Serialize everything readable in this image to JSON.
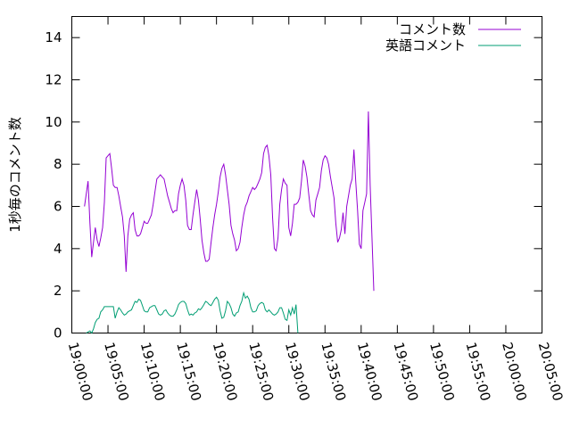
{
  "chart_data": {
    "type": "line",
    "title": "",
    "ylabel": "1秒毎のコメント数",
    "xlabel": "",
    "ylim": [
      0,
      15
    ],
    "yticks": [
      0,
      2,
      4,
      6,
      8,
      10,
      12,
      14
    ],
    "xlim": [
      "19:00:00",
      "20:05:00"
    ],
    "xticks": [
      "19:00:00",
      "19:05:00",
      "19:10:00",
      "19:15:00",
      "19:20:00",
      "19:25:00",
      "19:30:00",
      "19:35:00",
      "19:40:00",
      "19:45:00",
      "19:50:00",
      "19:55:00",
      "20:00:00",
      "20:05:00"
    ],
    "legend_position": "top-right",
    "series": [
      {
        "name": "コメント数",
        "color": "#9400d3",
        "points": [
          [
            "19:01:45",
            6.0
          ],
          [
            "19:02:00",
            6.6
          ],
          [
            "19:02:15",
            7.2
          ],
          [
            "19:02:30",
            5.2
          ],
          [
            "19:02:45",
            3.6
          ],
          [
            "19:03:00",
            4.3
          ],
          [
            "19:03:15",
            5.0
          ],
          [
            "19:03:30",
            4.4
          ],
          [
            "19:03:45",
            4.1
          ],
          [
            "19:04:00",
            4.5
          ],
          [
            "19:04:15",
            5.0
          ],
          [
            "19:04:30",
            6.2
          ],
          [
            "19:04:45",
            8.3
          ],
          [
            "19:05:00",
            8.4
          ],
          [
            "19:05:15",
            8.5
          ],
          [
            "19:05:30",
            7.8
          ],
          [
            "19:05:45",
            7.0
          ],
          [
            "19:06:00",
            6.9
          ],
          [
            "19:06:15",
            6.9
          ],
          [
            "19:06:30",
            6.5
          ],
          [
            "19:06:45",
            6.0
          ],
          [
            "19:07:00",
            5.5
          ],
          [
            "19:07:15",
            4.6
          ],
          [
            "19:07:30",
            2.9
          ],
          [
            "19:07:45",
            4.6
          ],
          [
            "19:08:00",
            5.4
          ],
          [
            "19:08:15",
            5.6
          ],
          [
            "19:08:30",
            5.7
          ],
          [
            "19:08:45",
            4.9
          ],
          [
            "19:09:00",
            4.6
          ],
          [
            "19:09:15",
            4.6
          ],
          [
            "19:09:30",
            4.7
          ],
          [
            "19:09:45",
            5.0
          ],
          [
            "19:10:00",
            5.3
          ],
          [
            "19:10:15",
            5.2
          ],
          [
            "19:10:30",
            5.2
          ],
          [
            "19:10:45",
            5.4
          ],
          [
            "19:11:00",
            5.6
          ],
          [
            "19:11:15",
            6.1
          ],
          [
            "19:11:30",
            6.7
          ],
          [
            "19:11:45",
            7.3
          ],
          [
            "19:12:00",
            7.4
          ],
          [
            "19:12:15",
            7.5
          ],
          [
            "19:12:30",
            7.4
          ],
          [
            "19:12:45",
            7.3
          ],
          [
            "19:13:00",
            6.9
          ],
          [
            "19:13:15",
            6.5
          ],
          [
            "19:13:30",
            6.2
          ],
          [
            "19:13:45",
            5.9
          ],
          [
            "19:14:00",
            5.7
          ],
          [
            "19:14:15",
            5.8
          ],
          [
            "19:14:30",
            5.8
          ],
          [
            "19:14:45",
            6.6
          ],
          [
            "19:15:00",
            7.0
          ],
          [
            "19:15:15",
            7.3
          ],
          [
            "19:15:30",
            7.0
          ],
          [
            "19:15:45",
            6.3
          ],
          [
            "19:16:00",
            5.1
          ],
          [
            "19:16:15",
            4.9
          ],
          [
            "19:16:30",
            4.9
          ],
          [
            "19:16:45",
            5.6
          ],
          [
            "19:17:00",
            6.2
          ],
          [
            "19:17:15",
            6.8
          ],
          [
            "19:17:30",
            6.3
          ],
          [
            "19:17:45",
            5.4
          ],
          [
            "19:18:00",
            4.4
          ],
          [
            "19:18:15",
            3.8
          ],
          [
            "19:18:30",
            3.4
          ],
          [
            "19:18:45",
            3.4
          ],
          [
            "19:19:00",
            3.5
          ],
          [
            "19:19:15",
            4.3
          ],
          [
            "19:19:30",
            5.0
          ],
          [
            "19:19:45",
            5.6
          ],
          [
            "19:20:00",
            6.1
          ],
          [
            "19:20:15",
            6.7
          ],
          [
            "19:20:30",
            7.4
          ],
          [
            "19:20:45",
            7.8
          ],
          [
            "19:21:00",
            8.0
          ],
          [
            "19:21:15",
            7.5
          ],
          [
            "19:21:30",
            6.8
          ],
          [
            "19:21:45",
            6.1
          ],
          [
            "19:22:00",
            5.1
          ],
          [
            "19:22:15",
            4.7
          ],
          [
            "19:22:30",
            4.4
          ],
          [
            "19:22:45",
            3.9
          ],
          [
            "19:23:00",
            4.0
          ],
          [
            "19:23:15",
            4.3
          ],
          [
            "19:23:30",
            5.0
          ],
          [
            "19:23:45",
            5.6
          ],
          [
            "19:24:00",
            6.0
          ],
          [
            "19:24:15",
            6.2
          ],
          [
            "19:24:30",
            6.5
          ],
          [
            "19:24:45",
            6.7
          ],
          [
            "19:25:00",
            6.9
          ],
          [
            "19:25:15",
            6.8
          ],
          [
            "19:25:30",
            6.9
          ],
          [
            "19:25:45",
            7.1
          ],
          [
            "19:26:00",
            7.3
          ],
          [
            "19:26:15",
            7.6
          ],
          [
            "19:26:30",
            8.5
          ],
          [
            "19:26:45",
            8.8
          ],
          [
            "19:27:00",
            8.9
          ],
          [
            "19:27:15",
            8.4
          ],
          [
            "19:27:30",
            7.5
          ],
          [
            "19:27:45",
            5.5
          ],
          [
            "19:28:00",
            4.0
          ],
          [
            "19:28:15",
            3.9
          ],
          [
            "19:28:30",
            4.5
          ],
          [
            "19:28:45",
            6.1
          ],
          [
            "19:29:00",
            6.8
          ],
          [
            "19:29:15",
            7.3
          ],
          [
            "19:29:30",
            7.1
          ],
          [
            "19:29:45",
            7.0
          ],
          [
            "19:30:00",
            5.0
          ],
          [
            "19:30:15",
            4.6
          ],
          [
            "19:30:30",
            5.2
          ],
          [
            "19:30:45",
            6.1
          ],
          [
            "19:31:00",
            6.1
          ],
          [
            "19:31:15",
            6.2
          ],
          [
            "19:31:30",
            6.4
          ],
          [
            "19:31:45",
            7.2
          ],
          [
            "19:32:00",
            8.2
          ],
          [
            "19:32:15",
            7.9
          ],
          [
            "19:32:30",
            7.4
          ],
          [
            "19:32:45",
            6.6
          ],
          [
            "19:33:00",
            5.8
          ],
          [
            "19:33:15",
            5.6
          ],
          [
            "19:33:30",
            5.5
          ],
          [
            "19:33:45",
            6.3
          ],
          [
            "19:34:00",
            6.6
          ],
          [
            "19:34:15",
            6.9
          ],
          [
            "19:34:30",
            7.7
          ],
          [
            "19:34:45",
            8.2
          ],
          [
            "19:35:00",
            8.4
          ],
          [
            "19:35:15",
            8.3
          ],
          [
            "19:35:30",
            8.0
          ],
          [
            "19:35:45",
            7.4
          ],
          [
            "19:36:00",
            6.9
          ],
          [
            "19:36:15",
            6.4
          ],
          [
            "19:36:30",
            5.2
          ],
          [
            "19:36:45",
            4.3
          ],
          [
            "19:37:00",
            4.5
          ],
          [
            "19:37:15",
            4.9
          ],
          [
            "19:37:30",
            5.7
          ],
          [
            "19:37:45",
            4.7
          ],
          [
            "19:38:00",
            6.0
          ],
          [
            "19:38:15",
            6.5
          ],
          [
            "19:38:30",
            7.0
          ],
          [
            "19:38:45",
            7.3
          ],
          [
            "19:39:00",
            8.7
          ],
          [
            "19:39:15",
            7.2
          ],
          [
            "19:39:30",
            5.8
          ],
          [
            "19:39:45",
            4.2
          ],
          [
            "19:40:00",
            4.0
          ],
          [
            "19:40:15",
            5.8
          ],
          [
            "19:40:30",
            6.2
          ],
          [
            "19:40:45",
            6.6
          ],
          [
            "19:41:00",
            10.5
          ],
          [
            "19:41:15",
            7.0
          ],
          [
            "19:41:45",
            2.0
          ]
        ]
      },
      {
        "name": "英語コメント",
        "color": "#009e73",
        "points": [
          [
            "19:02:00",
            0.0
          ],
          [
            "19:02:15",
            0.05
          ],
          [
            "19:02:30",
            0.1
          ],
          [
            "19:02:45",
            0.0
          ],
          [
            "19:03:00",
            0.2
          ],
          [
            "19:03:15",
            0.5
          ],
          [
            "19:03:30",
            0.65
          ],
          [
            "19:03:45",
            0.7
          ],
          [
            "19:04:00",
            1.0
          ],
          [
            "19:04:15",
            1.1
          ],
          [
            "19:04:30",
            1.25
          ],
          [
            "19:04:45",
            1.25
          ],
          [
            "19:05:00",
            1.25
          ],
          [
            "19:05:15",
            1.25
          ],
          [
            "19:05:30",
            1.25
          ],
          [
            "19:05:45",
            1.25
          ],
          [
            "19:06:00",
            0.7
          ],
          [
            "19:06:15",
            1.0
          ],
          [
            "19:06:30",
            1.2
          ],
          [
            "19:06:45",
            1.1
          ],
          [
            "19:07:00",
            0.95
          ],
          [
            "19:07:15",
            0.85
          ],
          [
            "19:07:30",
            0.9
          ],
          [
            "19:07:45",
            1.0
          ],
          [
            "19:08:00",
            1.05
          ],
          [
            "19:08:15",
            1.1
          ],
          [
            "19:08:30",
            1.3
          ],
          [
            "19:08:45",
            1.5
          ],
          [
            "19:09:00",
            1.45
          ],
          [
            "19:09:15",
            1.6
          ],
          [
            "19:09:30",
            1.55
          ],
          [
            "19:09:45",
            1.3
          ],
          [
            "19:10:00",
            1.05
          ],
          [
            "19:10:15",
            1.0
          ],
          [
            "19:10:30",
            1.0
          ],
          [
            "19:10:45",
            1.2
          ],
          [
            "19:11:00",
            1.25
          ],
          [
            "19:11:15",
            1.3
          ],
          [
            "19:11:30",
            1.3
          ],
          [
            "19:11:45",
            1.1
          ],
          [
            "19:12:00",
            0.9
          ],
          [
            "19:12:15",
            0.85
          ],
          [
            "19:12:30",
            0.9
          ],
          [
            "19:12:45",
            1.05
          ],
          [
            "19:13:00",
            1.1
          ],
          [
            "19:13:15",
            0.95
          ],
          [
            "19:13:30",
            0.85
          ],
          [
            "19:13:45",
            0.8
          ],
          [
            "19:14:00",
            0.8
          ],
          [
            "19:14:15",
            0.9
          ],
          [
            "19:14:30",
            1.1
          ],
          [
            "19:14:45",
            1.35
          ],
          [
            "19:15:00",
            1.45
          ],
          [
            "19:15:15",
            1.5
          ],
          [
            "19:15:30",
            1.5
          ],
          [
            "19:15:45",
            1.4
          ],
          [
            "19:16:00",
            1.1
          ],
          [
            "19:16:15",
            0.85
          ],
          [
            "19:16:30",
            0.9
          ],
          [
            "19:16:45",
            0.85
          ],
          [
            "19:17:00",
            0.95
          ],
          [
            "19:17:15",
            1.0
          ],
          [
            "19:17:30",
            1.15
          ],
          [
            "19:17:45",
            1.1
          ],
          [
            "19:18:00",
            1.2
          ],
          [
            "19:18:15",
            1.35
          ],
          [
            "19:18:30",
            1.5
          ],
          [
            "19:18:45",
            1.45
          ],
          [
            "19:19:00",
            1.35
          ],
          [
            "19:19:15",
            1.3
          ],
          [
            "19:19:30",
            1.45
          ],
          [
            "19:19:45",
            1.6
          ],
          [
            "19:20:00",
            1.7
          ],
          [
            "19:20:15",
            1.55
          ],
          [
            "19:20:30",
            1.05
          ],
          [
            "19:20:45",
            0.7
          ],
          [
            "19:21:00",
            0.75
          ],
          [
            "19:21:15",
            1.05
          ],
          [
            "19:21:30",
            1.5
          ],
          [
            "19:21:45",
            1.4
          ],
          [
            "19:22:00",
            1.2
          ],
          [
            "19:22:15",
            0.9
          ],
          [
            "19:22:30",
            0.8
          ],
          [
            "19:22:45",
            0.95
          ],
          [
            "19:23:00",
            1.0
          ],
          [
            "19:23:15",
            1.3
          ],
          [
            "19:23:30",
            1.5
          ],
          [
            "19:23:45",
            1.9
          ],
          [
            "19:24:00",
            1.65
          ],
          [
            "19:24:15",
            1.75
          ],
          [
            "19:24:30",
            1.6
          ],
          [
            "19:24:45",
            1.2
          ],
          [
            "19:25:00",
            1.0
          ],
          [
            "19:25:15",
            1.0
          ],
          [
            "19:25:30",
            1.05
          ],
          [
            "19:25:45",
            1.3
          ],
          [
            "19:26:00",
            1.4
          ],
          [
            "19:26:15",
            1.45
          ],
          [
            "19:26:30",
            1.4
          ],
          [
            "19:26:45",
            1.1
          ],
          [
            "19:27:00",
            1.0
          ],
          [
            "19:27:15",
            1.1
          ],
          [
            "19:27:30",
            1.0
          ],
          [
            "19:27:45",
            0.9
          ],
          [
            "19:28:00",
            0.85
          ],
          [
            "19:28:15",
            0.9
          ],
          [
            "19:28:30",
            1.0
          ],
          [
            "19:28:45",
            1.2
          ],
          [
            "19:29:00",
            1.2
          ],
          [
            "19:29:15",
            0.95
          ],
          [
            "19:29:30",
            0.65
          ],
          [
            "19:29:45",
            0.6
          ],
          [
            "19:30:00",
            1.1
          ],
          [
            "19:30:15",
            0.85
          ],
          [
            "19:30:30",
            1.2
          ],
          [
            "19:30:45",
            0.9
          ],
          [
            "19:31:00",
            1.35
          ],
          [
            "19:31:15",
            0.0
          ]
        ]
      }
    ]
  }
}
